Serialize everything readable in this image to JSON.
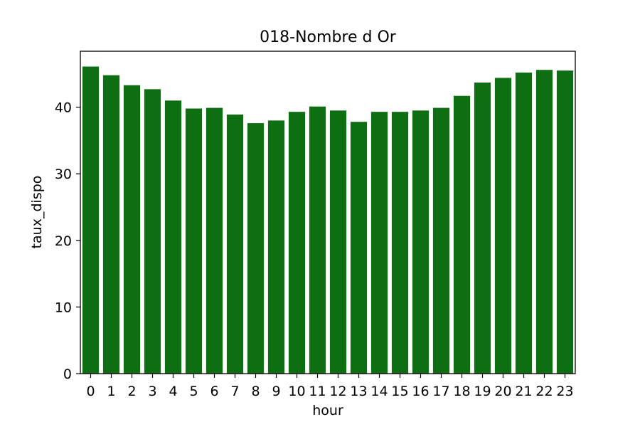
{
  "chart_data": {
    "type": "bar",
    "title": "018-Nombre d Or",
    "xlabel": "hour",
    "ylabel": "taux_dispo",
    "categories": [
      "0",
      "1",
      "2",
      "3",
      "4",
      "5",
      "6",
      "7",
      "8",
      "9",
      "10",
      "11",
      "12",
      "13",
      "14",
      "15",
      "16",
      "17",
      "18",
      "19",
      "20",
      "21",
      "22",
      "23"
    ],
    "values": [
      46.1,
      44.8,
      43.3,
      42.7,
      41.0,
      39.8,
      39.9,
      38.9,
      37.6,
      38.0,
      39.3,
      40.1,
      39.5,
      37.8,
      39.3,
      39.3,
      39.5,
      39.9,
      41.7,
      43.7,
      44.4,
      45.2,
      45.6,
      45.5
    ],
    "ylim": [
      0,
      48.4
    ],
    "yticks": [
      0,
      10,
      20,
      30,
      40
    ],
    "bar_color": "#0e6e12",
    "grid": false,
    "legend": "none"
  }
}
